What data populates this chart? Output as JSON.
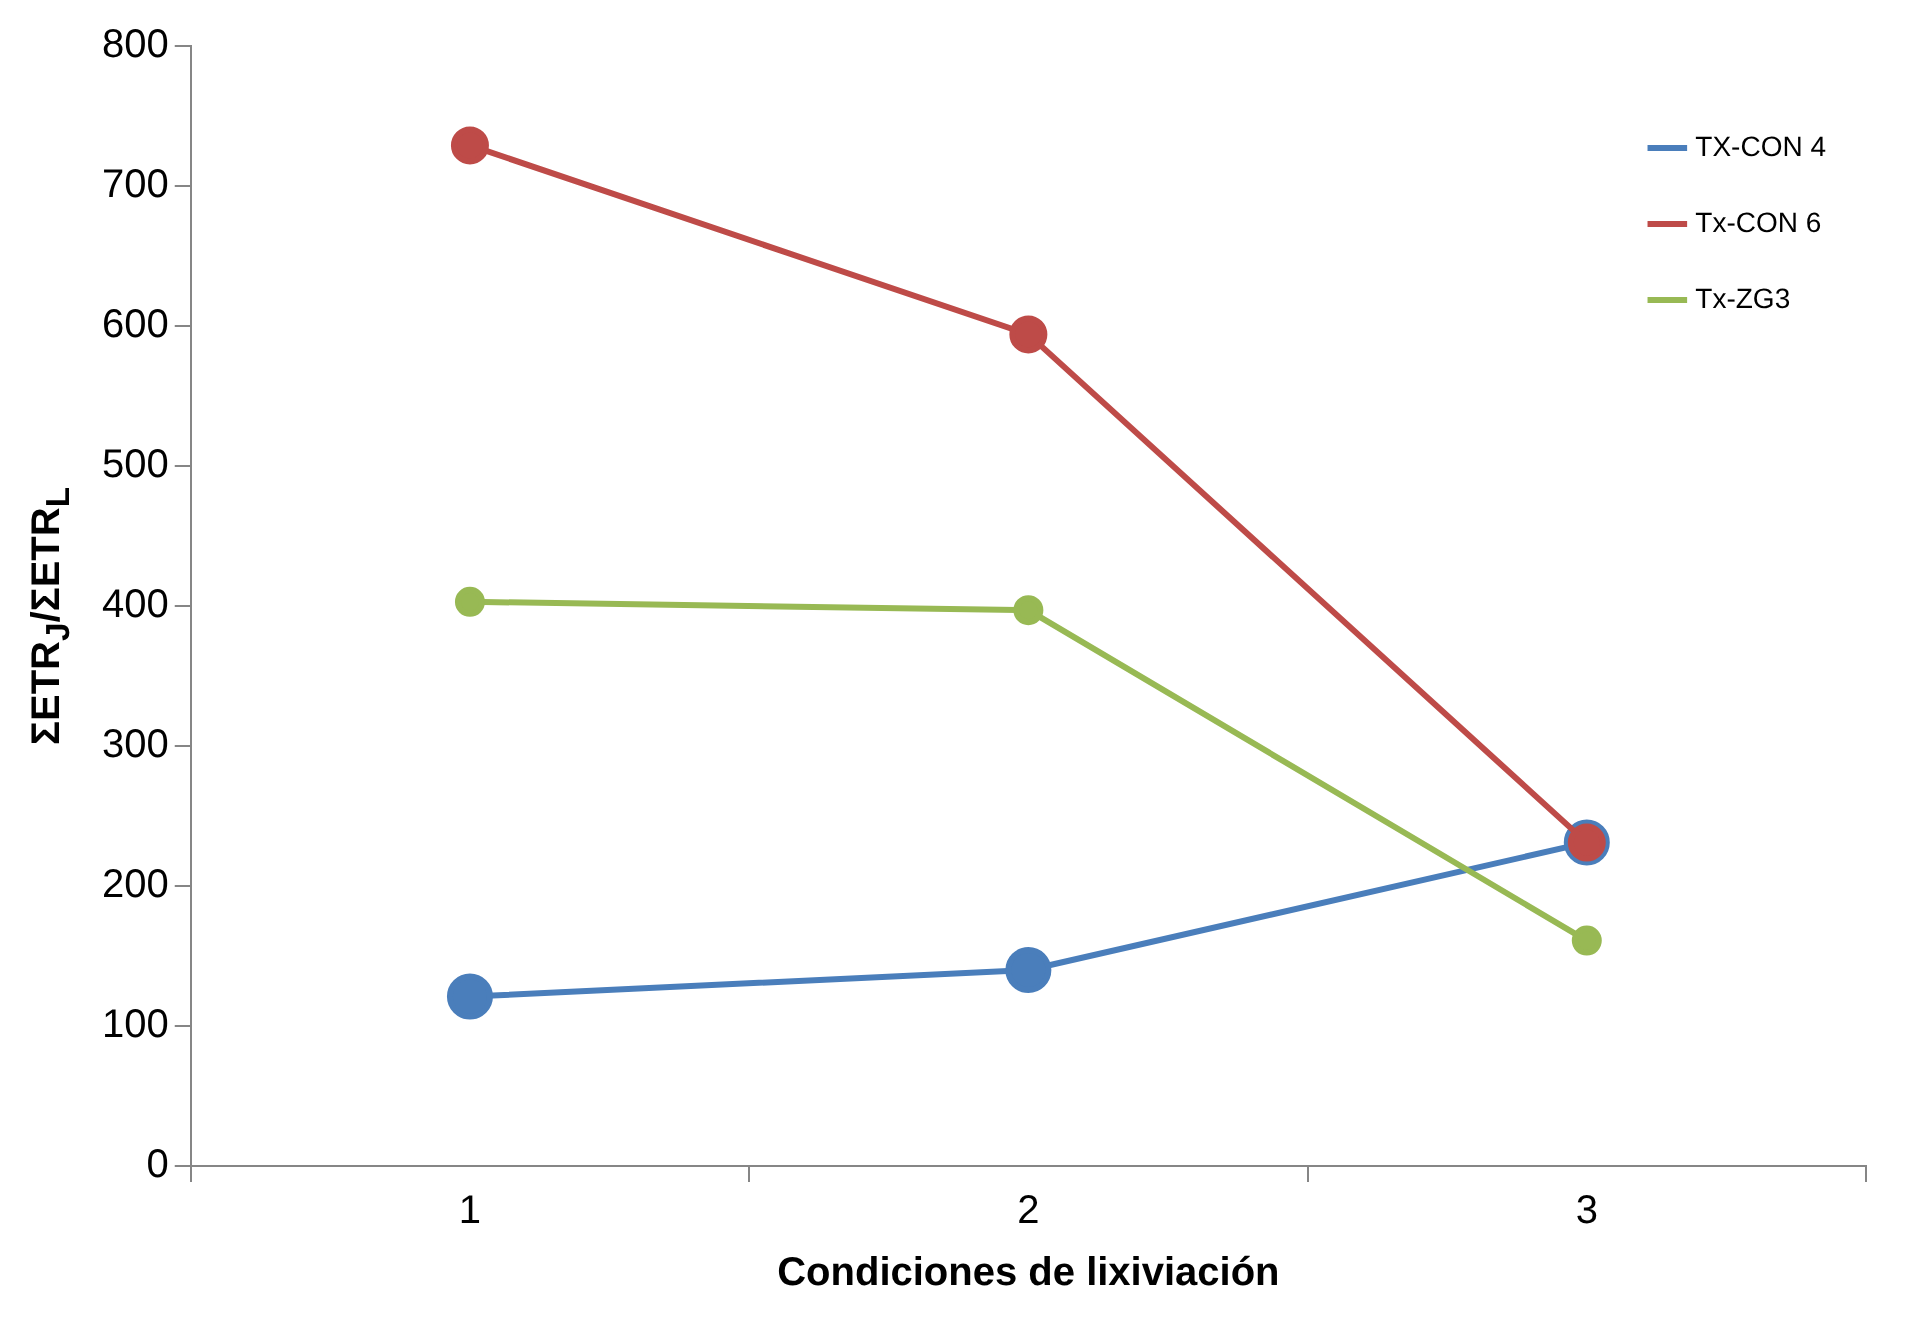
{
  "chart_data": {
    "type": "line",
    "xlabel": "Condiciones de lixiviación",
    "ylabel": "ΣETR$_{J}$/ΣETR$_{L}$",
    "categories": [
      "1",
      "2",
      "3"
    ],
    "series": [
      {
        "name": "TX-CON 4",
        "color": "#4a7ebb",
        "values": [
          121,
          140,
          231
        ]
      },
      {
        "name": "Tx-CON 6",
        "color": "#be4b48",
        "values": [
          729,
          594,
          231
        ]
      },
      {
        "name": "Tx-ZG3",
        "color": "#98b954",
        "values": [
          403,
          397,
          161
        ]
      }
    ],
    "ylim": [
      0,
      800
    ],
    "yticks": [
      0,
      100,
      200,
      300,
      400,
      500,
      600,
      700,
      800
    ],
    "grid": false,
    "legend": "top right",
    "marker": "circle",
    "line_style": "solid"
  }
}
